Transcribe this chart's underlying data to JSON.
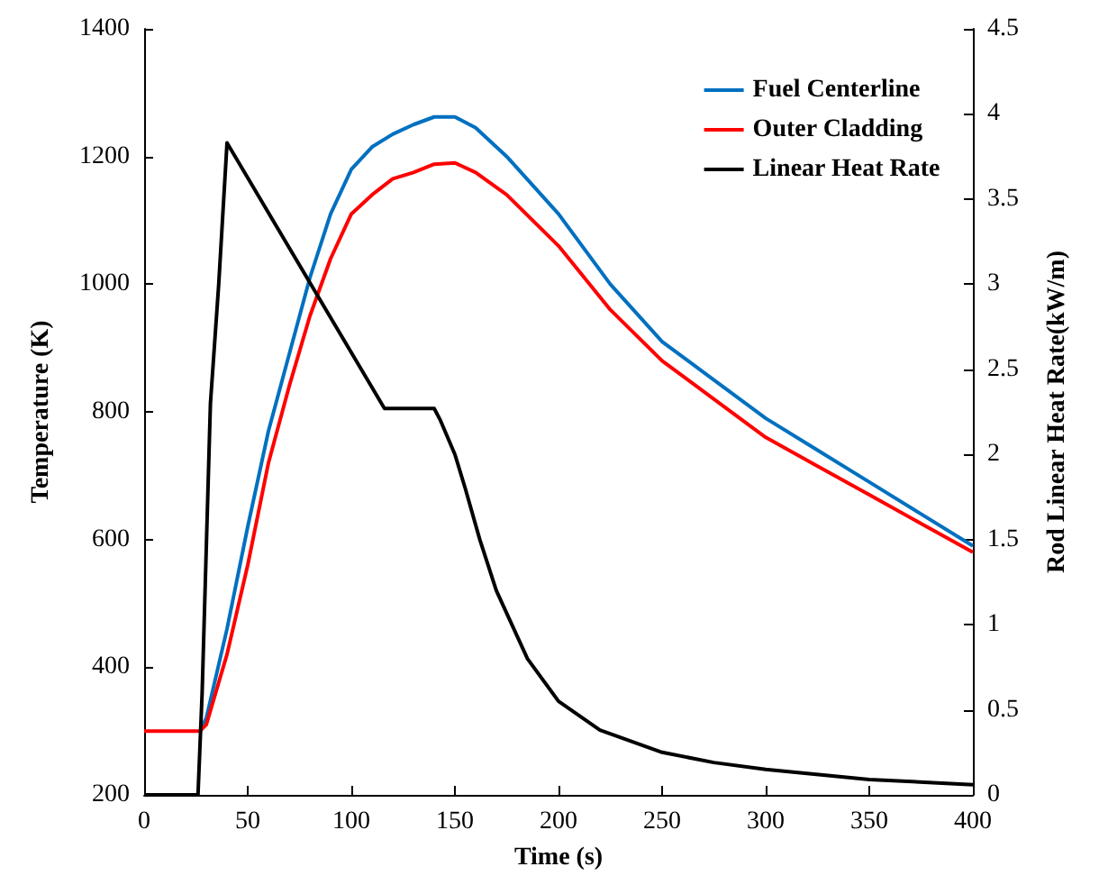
{
  "chart_data": {
    "type": "line",
    "xlabel": "Time (s)",
    "ylabel": "Temperature (K)",
    "y2label": "Rod Linear Heat Rate(kW/m)",
    "xlim": [
      0,
      400
    ],
    "xticks": [
      0,
      50,
      100,
      150,
      200,
      250,
      300,
      350,
      400
    ],
    "ylim": [
      200,
      1400
    ],
    "yticks": [
      200,
      400,
      600,
      800,
      1000,
      1200,
      1400
    ],
    "y2lim": [
      0,
      4.5
    ],
    "y2ticks": [
      0,
      0.5,
      1,
      1.5,
      2,
      2.5,
      3,
      3.5,
      4,
      4.5
    ],
    "grid": false,
    "legend": "top right",
    "line_style": "solid",
    "marker": "none",
    "series": [
      {
        "name": "Fuel Centerline",
        "color": "#0070c0",
        "x": [
          27,
          30,
          40,
          50,
          60,
          70,
          80,
          90,
          100,
          110,
          120,
          130,
          140,
          150,
          160,
          175,
          200,
          225,
          250,
          275,
          300,
          325,
          350,
          375,
          400
        ],
        "values": [
          300,
          320,
          460,
          620,
          770,
          890,
          1010,
          1110,
          1180,
          1215,
          1235,
          1250,
          1262,
          1262,
          1245,
          1200,
          1110,
          1000,
          910,
          850,
          790,
          740,
          690,
          640,
          590
        ]
      },
      {
        "name": "Outer Cladding",
        "color": "#ff0000",
        "x": [
          0,
          27,
          30,
          40,
          50,
          60,
          70,
          80,
          90,
          100,
          110,
          120,
          130,
          140,
          150,
          160,
          175,
          200,
          225,
          250,
          275,
          300,
          325,
          350,
          375,
          400
        ],
        "values": [
          300,
          300,
          310,
          420,
          560,
          720,
          840,
          950,
          1040,
          1110,
          1140,
          1165,
          1175,
          1188,
          1190,
          1175,
          1140,
          1060,
          960,
          880,
          820,
          760,
          715,
          670,
          625,
          580
        ]
      },
      {
        "name": "Linear Heat Rate",
        "color": "#000000",
        "axis": "y2",
        "x": [
          0,
          26,
          28,
          32,
          36,
          40,
          116,
          120,
          140,
          143,
          150,
          155,
          162,
          170,
          185,
          200,
          220,
          250,
          275,
          300,
          350,
          400
        ],
        "values": [
          0,
          0,
          0.6,
          2.3,
          3.0,
          3.83,
          2.27,
          2.27,
          2.27,
          2.2,
          2.0,
          1.8,
          1.5,
          1.2,
          0.8,
          0.55,
          0.38,
          0.25,
          0.19,
          0.15,
          0.09,
          0.06
        ]
      }
    ]
  }
}
